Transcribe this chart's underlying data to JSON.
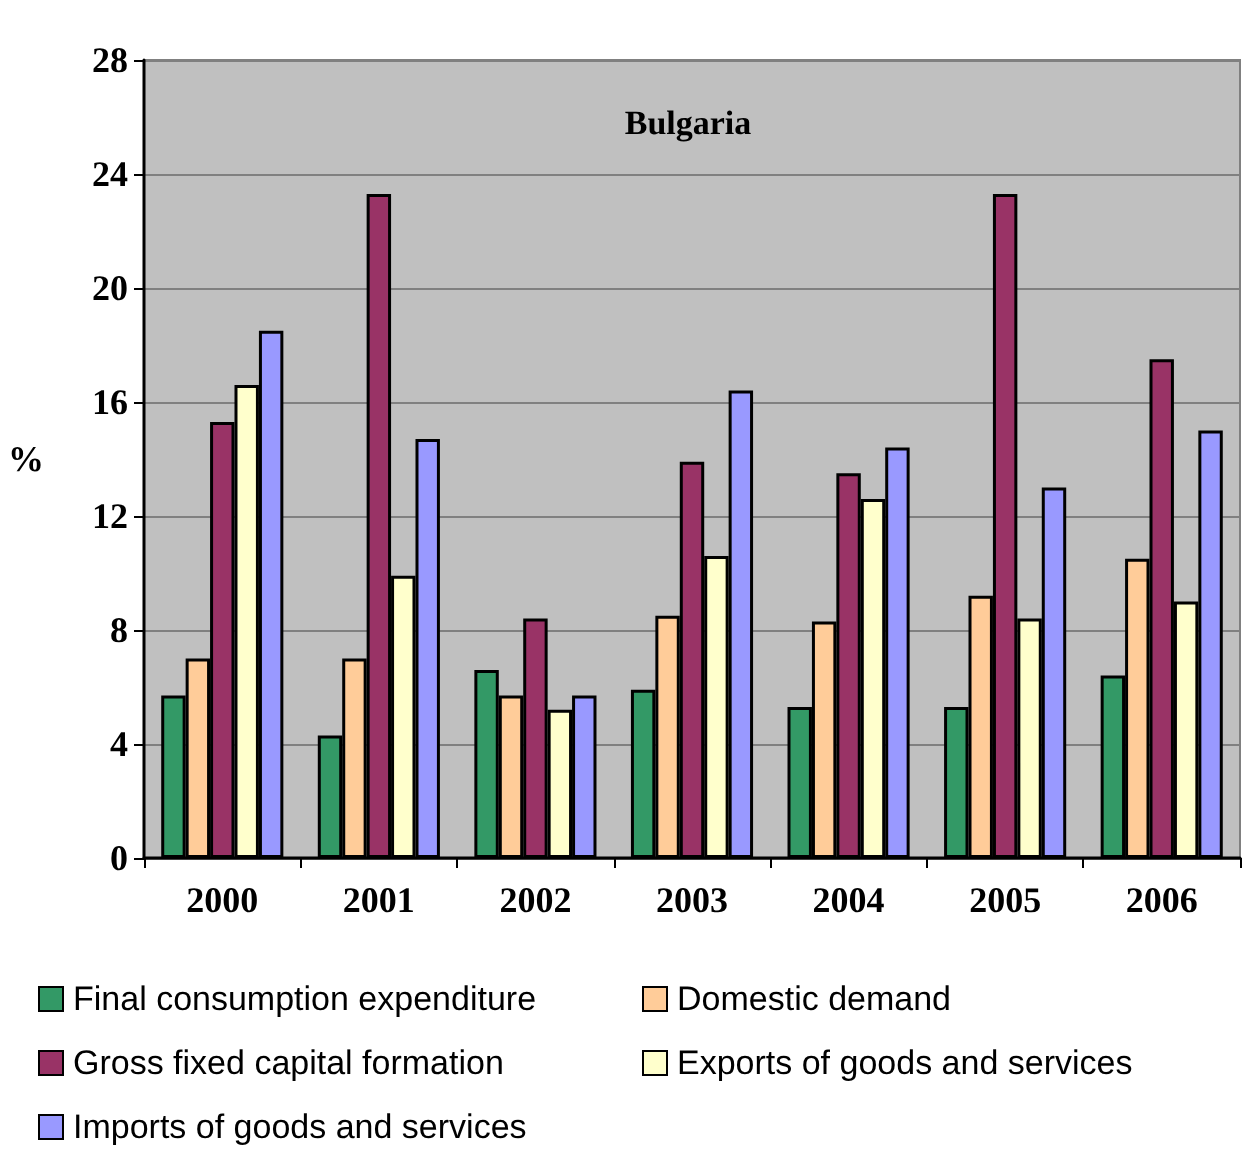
{
  "chart_data": {
    "type": "bar",
    "title": "Bulgaria",
    "ylabel": "%",
    "categories": [
      "2000",
      "2001",
      "2002",
      "2003",
      "2004",
      "2005",
      "2006"
    ],
    "series": [
      {
        "name": "Final consumption expenditure",
        "color": "#339966",
        "values": [
          5.7,
          4.3,
          6.6,
          5.9,
          5.3,
          5.3,
          6.4
        ]
      },
      {
        "name": "Domestic demand",
        "color": "#ffcc99",
        "values": [
          7.0,
          7.0,
          5.7,
          8.5,
          8.3,
          9.2,
          10.5
        ]
      },
      {
        "name": "Gross fixed capital formation",
        "color": "#993366",
        "values": [
          15.3,
          23.3,
          8.4,
          13.9,
          13.5,
          23.3,
          17.5
        ]
      },
      {
        "name": "Exports of goods and services",
        "color": "#ffffcc",
        "values": [
          16.6,
          9.9,
          5.2,
          10.6,
          12.6,
          8.4,
          9.0
        ]
      },
      {
        "name": "Imports of goods and services",
        "color": "#9999ff",
        "values": [
          18.5,
          14.7,
          5.7,
          16.4,
          14.4,
          13.0,
          15.0
        ]
      }
    ],
    "ylim": [
      0,
      28
    ],
    "yticks": [
      0,
      4,
      8,
      12,
      16,
      20,
      24,
      28
    ],
    "grid": "y",
    "legend": "bottom"
  }
}
